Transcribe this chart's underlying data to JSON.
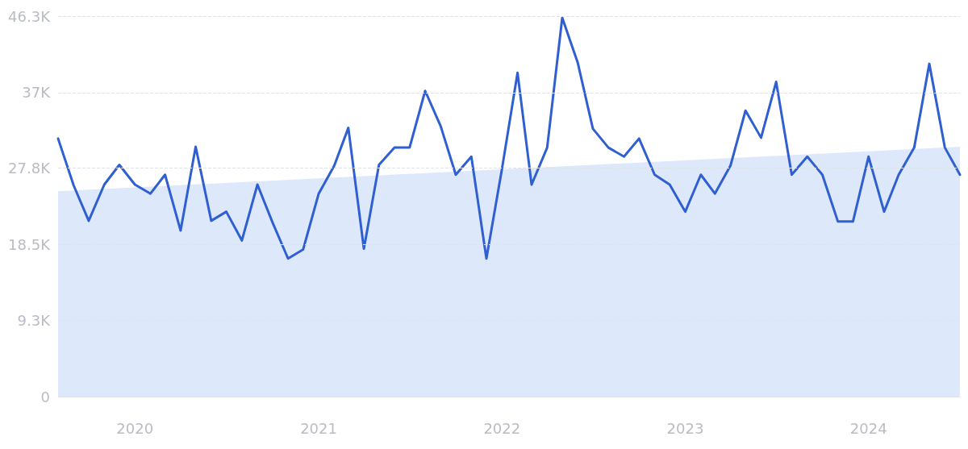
{
  "chart_data": {
    "type": "line",
    "x": [
      "2019-08",
      "2019-09",
      "2019-10",
      "2019-11",
      "2019-12",
      "2020-01",
      "2020-02",
      "2020-03",
      "2020-04",
      "2020-05",
      "2020-06",
      "2020-07",
      "2020-08",
      "2020-09",
      "2020-10",
      "2020-11",
      "2020-12",
      "2021-01",
      "2021-02",
      "2021-03",
      "2021-04",
      "2021-05",
      "2021-06",
      "2021-07",
      "2021-08",
      "2021-09",
      "2021-10",
      "2021-11",
      "2021-12",
      "2022-01",
      "2022-02",
      "2022-03",
      "2022-04",
      "2022-05",
      "2022-06",
      "2022-07",
      "2022-08",
      "2022-09",
      "2022-10",
      "2022-11",
      "2022-12",
      "2023-01",
      "2023-02",
      "2023-03",
      "2023-04",
      "2023-05",
      "2023-06",
      "2023-07",
      "2023-08",
      "2023-09",
      "2023-10",
      "2023-11",
      "2023-12",
      "2024-01",
      "2024-02",
      "2024-03",
      "2024-04",
      "2024-05",
      "2024-06",
      "2024-07"
    ],
    "series": [
      {
        "type": "area",
        "color": "#dde9fb",
        "x": [
          "2019-08",
          "2024-07"
        ],
        "values": [
          25.0,
          30.4
        ]
      },
      {
        "type": "line",
        "color": "#2f5fd0",
        "values": [
          31.4,
          25.7,
          21.4,
          25.8,
          28.2,
          25.8,
          24.7,
          27.0,
          20.2,
          30.4,
          21.4,
          22.5,
          19.0,
          25.8,
          21.2,
          16.8,
          17.9,
          24.7,
          28.1,
          32.7,
          18.0,
          28.2,
          30.3,
          30.3,
          37.2,
          32.9,
          27.0,
          29.2,
          16.8,
          27.7,
          39.4,
          25.8,
          30.3,
          46.1,
          40.6,
          32.6,
          30.3,
          29.2,
          31.4,
          27.0,
          25.8,
          22.5,
          27.0,
          24.7,
          28.1,
          34.8,
          31.5,
          38.3,
          27.0,
          29.2,
          27.0,
          21.3,
          21.3,
          29.2,
          22.5,
          27.0,
          30.3,
          40.5,
          30.3,
          27.0
        ]
      }
    ],
    "xlim": [
      "2019-08",
      "2024-07"
    ],
    "xticks": [
      "2020",
      "2021",
      "2022",
      "2023",
      "2024"
    ],
    "ylim": [
      0,
      46.3
    ],
    "yticks": [
      0,
      {
        "value": 9.3,
        "label": "9.3K"
      },
      {
        "value": 18.5,
        "label": "18.5K"
      },
      {
        "value": 27.8,
        "label": "27.8K"
      },
      {
        "value": 37,
        "label": "37K"
      },
      {
        "value": 46.3,
        "label": "46.3K"
      }
    ],
    "grid": "y",
    "marker": "none",
    "line_style": "solid"
  }
}
